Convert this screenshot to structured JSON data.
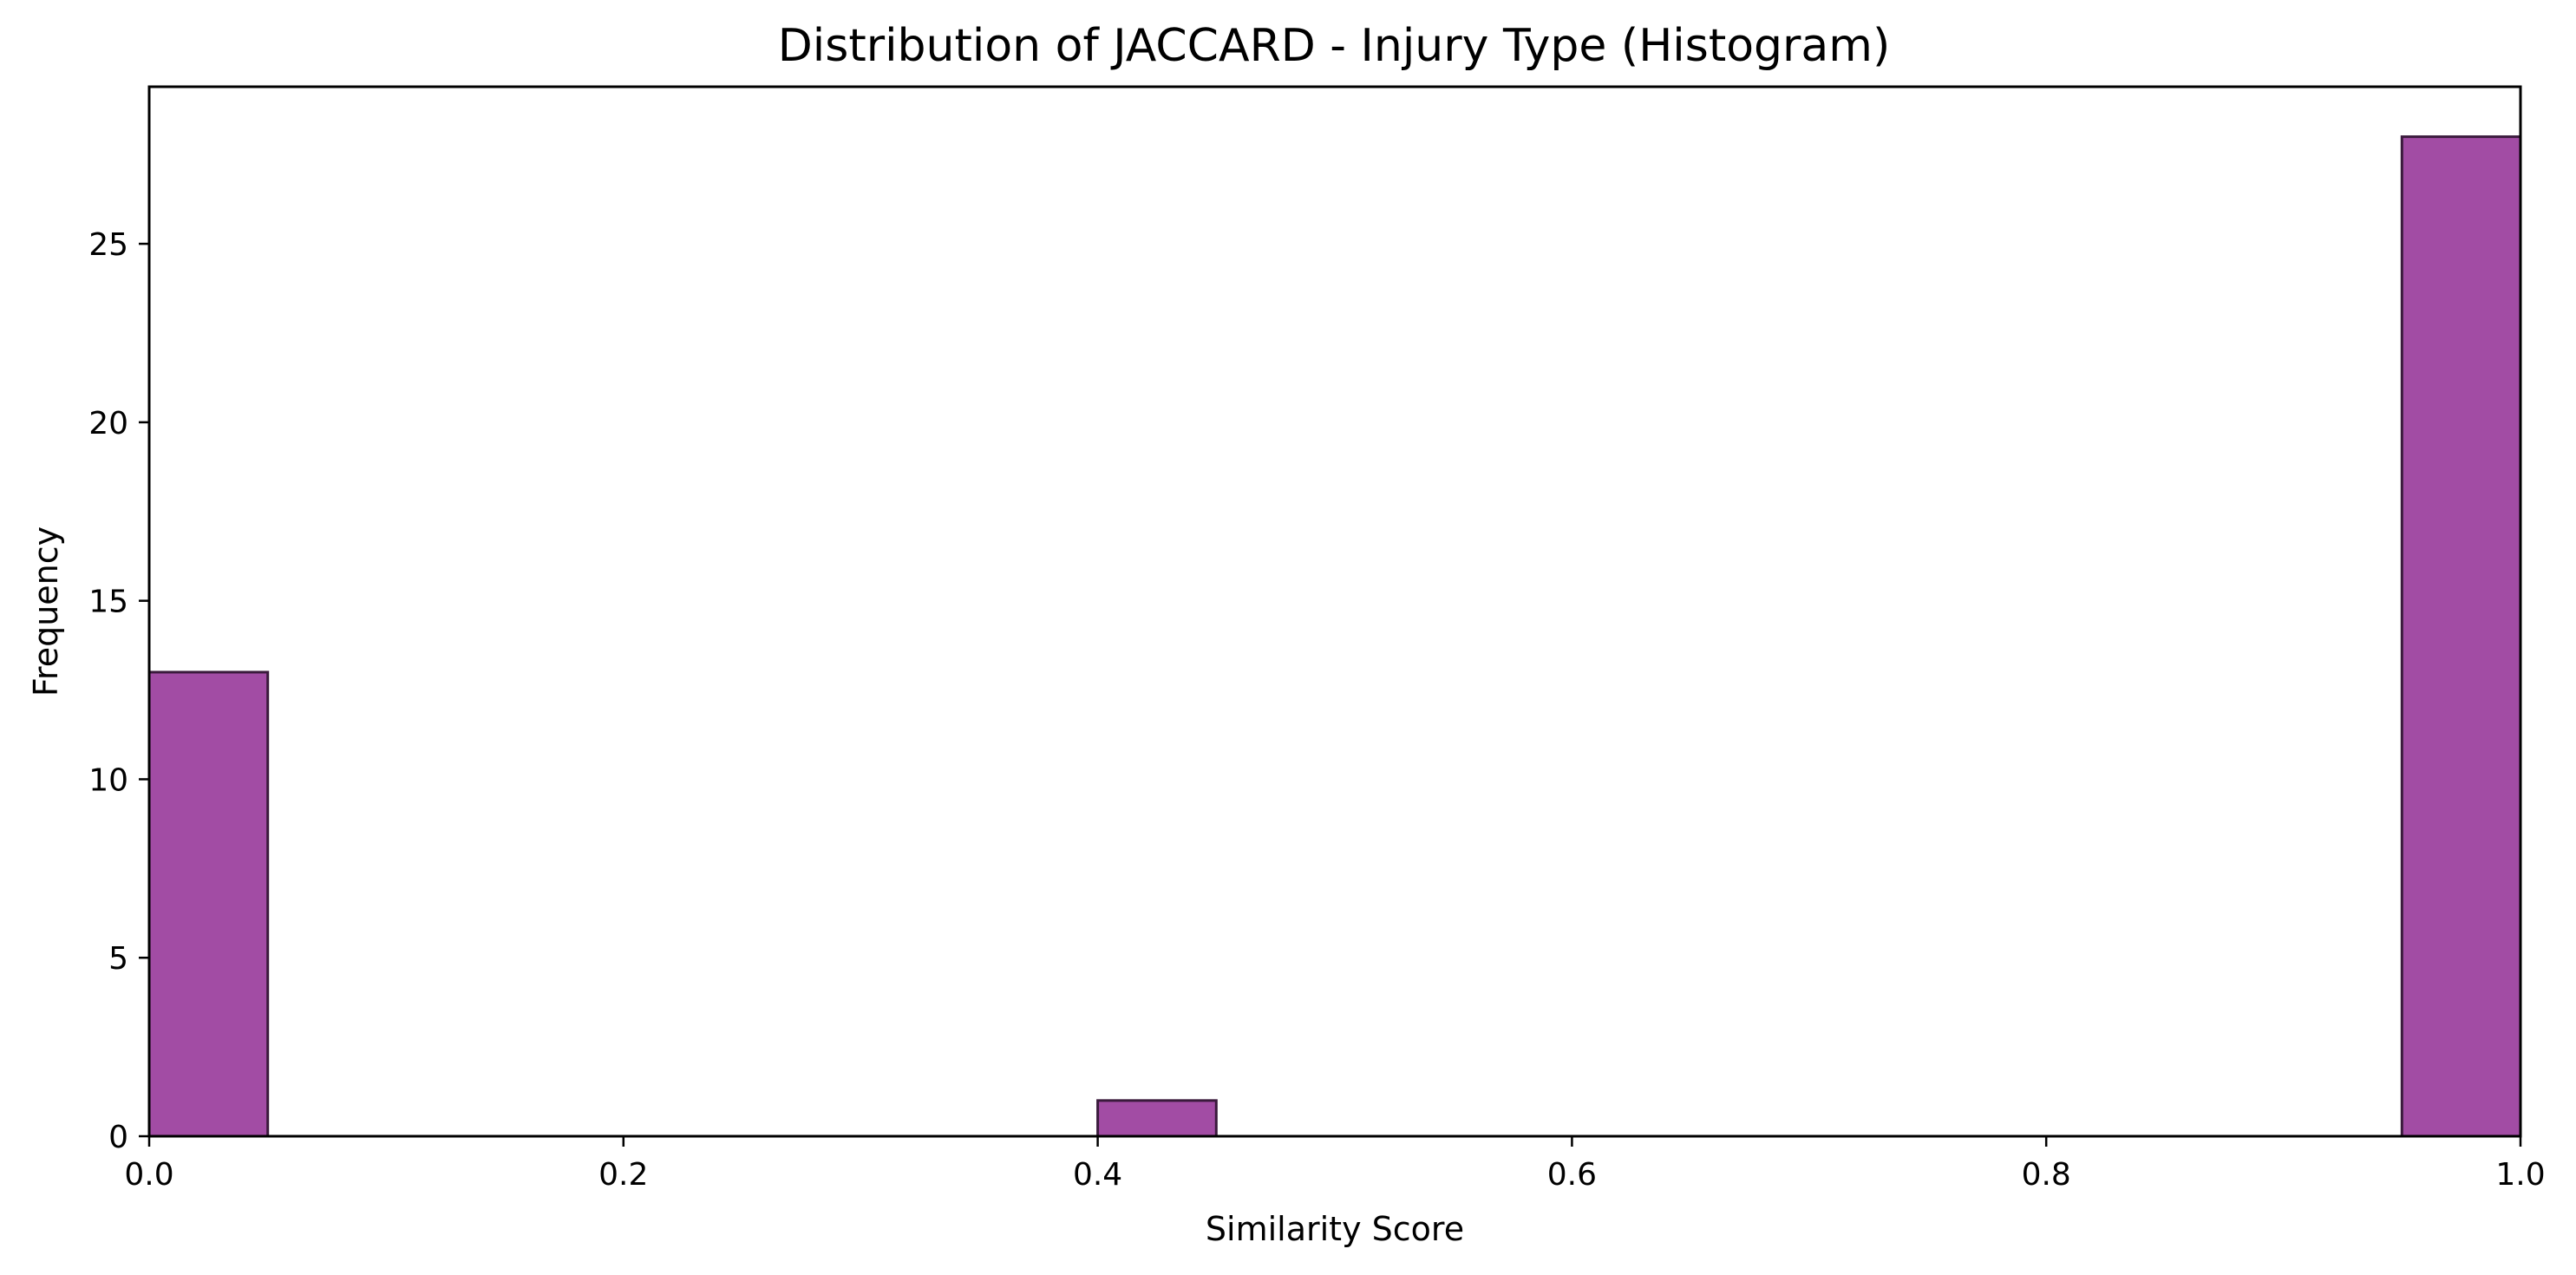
{
  "chart_data": {
    "type": "bar",
    "title": "Distribution of JACCARD - Injury Type (Histogram)",
    "xlabel": "Similarity Score",
    "ylabel": "Frequency",
    "xlim": [
      0.0,
      1.0
    ],
    "ylim": [
      0,
      29.4
    ],
    "xticks": [
      "0.0",
      "0.2",
      "0.4",
      "0.6",
      "0.8",
      "1.0"
    ],
    "yticks": [
      "0",
      "5",
      "10",
      "15",
      "20",
      "25"
    ],
    "bins": [
      {
        "x0": 0.0,
        "x1": 0.05,
        "count": 13
      },
      {
        "x0": 0.4,
        "x1": 0.45,
        "count": 1
      },
      {
        "x0": 0.95,
        "x1": 1.0,
        "count": 28
      }
    ],
    "bar_color": "#a24ca4",
    "bar_edge_color": "#3a1a3c",
    "grid": false,
    "legend": "none"
  }
}
